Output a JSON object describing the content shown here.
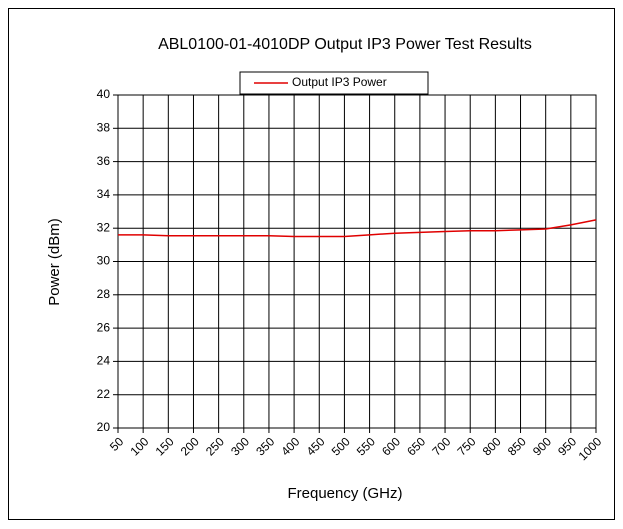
{
  "chart_data": {
    "type": "line",
    "title": "ABL0100-01-4010DP Output IP3 Power Test Results",
    "x_label": "Frequency (GHz)",
    "y_label": "Power (dBm)",
    "x": [
      50,
      100,
      150,
      200,
      250,
      300,
      350,
      400,
      450,
      500,
      550,
      600,
      650,
      700,
      750,
      800,
      850,
      900,
      950,
      1000
    ],
    "series": [
      {
        "name": "Output IP3 Power",
        "color": "#e00000",
        "values": [
          31.6,
          31.6,
          31.55,
          31.55,
          31.55,
          31.55,
          31.55,
          31.5,
          31.5,
          31.5,
          31.6,
          31.7,
          31.75,
          31.8,
          31.85,
          31.85,
          31.9,
          31.95,
          32.2,
          32.5
        ]
      }
    ],
    "xlim": [
      50,
      1000
    ],
    "xticks": [
      50,
      100,
      150,
      200,
      250,
      300,
      350,
      400,
      450,
      500,
      550,
      600,
      650,
      700,
      750,
      800,
      850,
      900,
      950,
      1000
    ],
    "ylim": [
      20,
      40
    ],
    "yticks": [
      20,
      22,
      24,
      26,
      28,
      30,
      32,
      34,
      36,
      38,
      40
    ],
    "grid": true,
    "legend": "top"
  }
}
